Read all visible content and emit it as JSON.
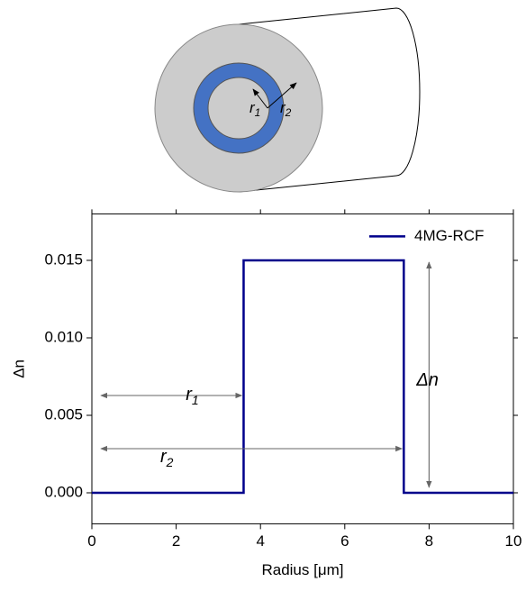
{
  "diagram": {
    "labels": [
      {
        "text": "r",
        "sub": "1"
      },
      {
        "text": "r",
        "sub": "2"
      }
    ]
  },
  "chart_data": {
    "type": "line",
    "x": [
      0,
      3.6,
      3.6,
      7.4,
      7.4,
      10
    ],
    "series": [
      {
        "name": "4MG-RCF",
        "color": "#00008b",
        "values": [
          0,
          0,
          0.015,
          0.015,
          0,
          0
        ]
      }
    ],
    "xlim": [
      0,
      10
    ],
    "ylim": [
      -0.002,
      0.018
    ],
    "xticks": [
      0,
      2,
      4,
      6,
      8,
      10
    ],
    "yticks": [
      {
        "value": 0,
        "label": "0.000"
      },
      {
        "value": 0.005,
        "label": "0.005"
      },
      {
        "value": 0.01,
        "label": "0.010"
      },
      {
        "value": 0.015,
        "label": "0.015"
      }
    ],
    "xlabel": "Radius [μm]",
    "ylabel": "Δn",
    "legend": "upper right",
    "annotations": [
      {
        "text": "r",
        "sub": "1"
      },
      {
        "text": "r",
        "sub": "2"
      },
      {
        "text": "Δn"
      }
    ]
  }
}
